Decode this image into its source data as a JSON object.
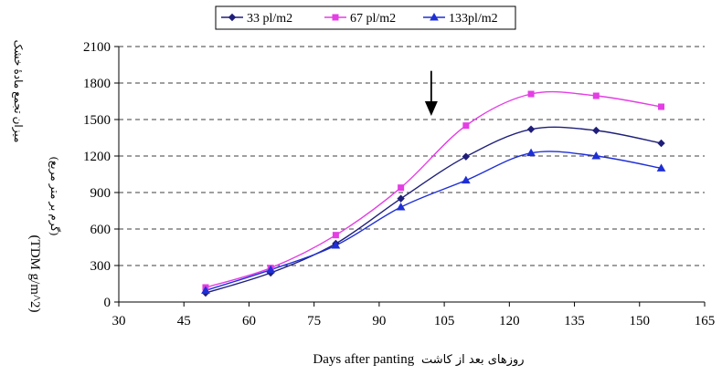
{
  "chart_data": {
    "type": "line",
    "x_axis": {
      "range": [
        30,
        165
      ],
      "ticks": [
        30,
        45,
        60,
        75,
        90,
        105,
        120,
        135,
        150,
        165
      ],
      "label_en": "Days after panting",
      "label_fa": "روزهای بعد از کاشت"
    },
    "y_axis": {
      "range": [
        0,
        2100
      ],
      "ticks": [
        0,
        300,
        600,
        900,
        1200,
        1500,
        1800,
        2100
      ],
      "label_fa_line1": "میزان تجمع مادهٔ خشک",
      "label_fa_line2": "(گرم بر متر مربع)",
      "label_en": "(TDM g/m^2)",
      "grid": true
    },
    "legend": {
      "placement": "top"
    },
    "annotation": {
      "type": "arrow",
      "x": 102,
      "y_from": 1900,
      "y_to": 1530
    },
    "series": [
      {
        "name": "33 pl/m2",
        "color": "#1f1f7a",
        "marker": "diamond",
        "x": [
          50,
          65,
          80,
          95,
          110,
          125,
          140,
          155
        ],
        "y": [
          75,
          240,
          480,
          850,
          1195,
          1420,
          1410,
          1305
        ]
      },
      {
        "name": "67 pl/m2",
        "color": "#e43ee4",
        "marker": "square",
        "x": [
          50,
          65,
          80,
          95,
          110,
          125,
          140,
          155
        ],
        "y": [
          120,
          280,
          550,
          940,
          1450,
          1710,
          1695,
          1605
        ]
      },
      {
        "name": "133pl/m2",
        "color": "#1f2fd6",
        "marker": "triangle",
        "x": [
          50,
          65,
          80,
          95,
          110,
          125,
          140,
          155
        ],
        "y": [
          95,
          265,
          465,
          780,
          1000,
          1225,
          1200,
          1100
        ]
      }
    ]
  }
}
